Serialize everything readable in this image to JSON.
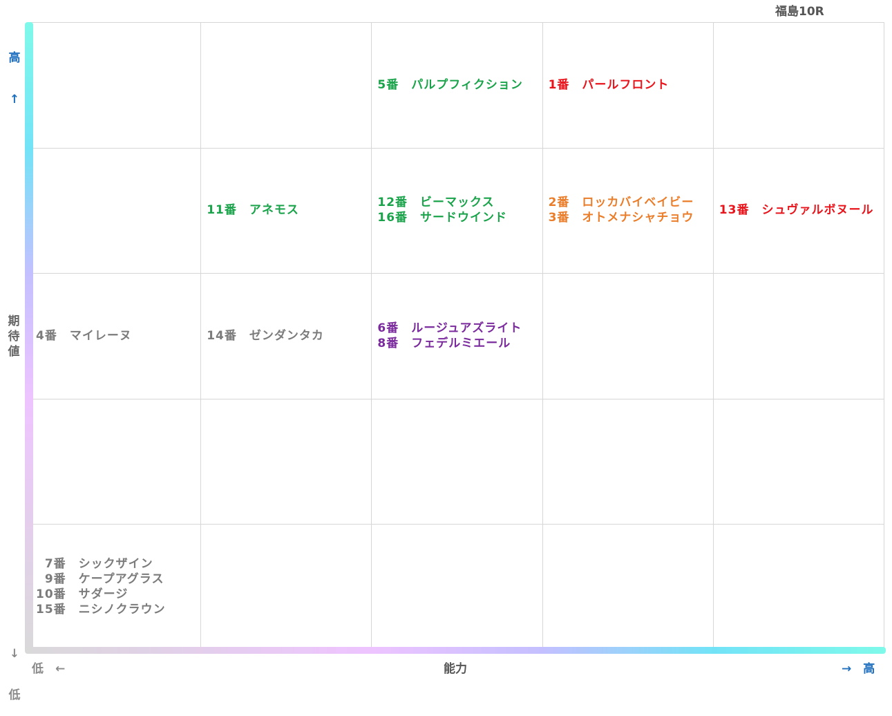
{
  "title": "福島10R",
  "axes": {
    "x_title": "能力",
    "y_title": "期待値",
    "x_low": "低　←",
    "x_high": "→　高",
    "y_high": "高",
    "y_high_arrow": "↑",
    "y_low": "低",
    "y_low_arrow": "↓",
    "low_color": "#8a8a8a",
    "high_color": "#1f6fbf"
  },
  "chart_data": {
    "type": "table",
    "x_axis": "能力",
    "y_axis": "期待値",
    "columns": 5,
    "rows": 5,
    "cells": [
      {
        "col": 3,
        "row": 1,
        "color": "#1aa34a",
        "entries": [
          "5番　パルプフィクション"
        ]
      },
      {
        "col": 4,
        "row": 1,
        "color": "#e8141b",
        "entries": [
          "1番　パールフロント"
        ]
      },
      {
        "col": 2,
        "row": 2,
        "color": "#1aa34a",
        "entries": [
          "11番　アネモス"
        ]
      },
      {
        "col": 3,
        "row": 2,
        "color": "#1aa34a",
        "entries": [
          "12番　ビーマックス",
          "16番　サードウインド"
        ]
      },
      {
        "col": 4,
        "row": 2,
        "color": "#ea7d2a",
        "entries": [
          "2番　ロッカバイベイビー",
          "3番　オトメナシャチョウ"
        ]
      },
      {
        "col": 5,
        "row": 2,
        "color": "#e8141b",
        "entries": [
          "13番　シュヴァルボヌール"
        ]
      },
      {
        "col": 1,
        "row": 3,
        "color": "#7b7b7b",
        "entries": [
          "4番　マイレーヌ"
        ]
      },
      {
        "col": 2,
        "row": 3,
        "color": "#7b7b7b",
        "entries": [
          "14番　ゼンダンタカ"
        ]
      },
      {
        "col": 3,
        "row": 3,
        "color": "#7a2a9c",
        "entries": [
          "6番　ルージュアズライト",
          "8番　フェデルミエール"
        ]
      },
      {
        "col": 1,
        "row": 5,
        "color": "#7b7b7b",
        "entries": [
          "7番　シックザイン",
          "9番　ケープアグラス",
          "10番　サダージ",
          "15番　ニシノクラウン"
        ]
      }
    ]
  }
}
